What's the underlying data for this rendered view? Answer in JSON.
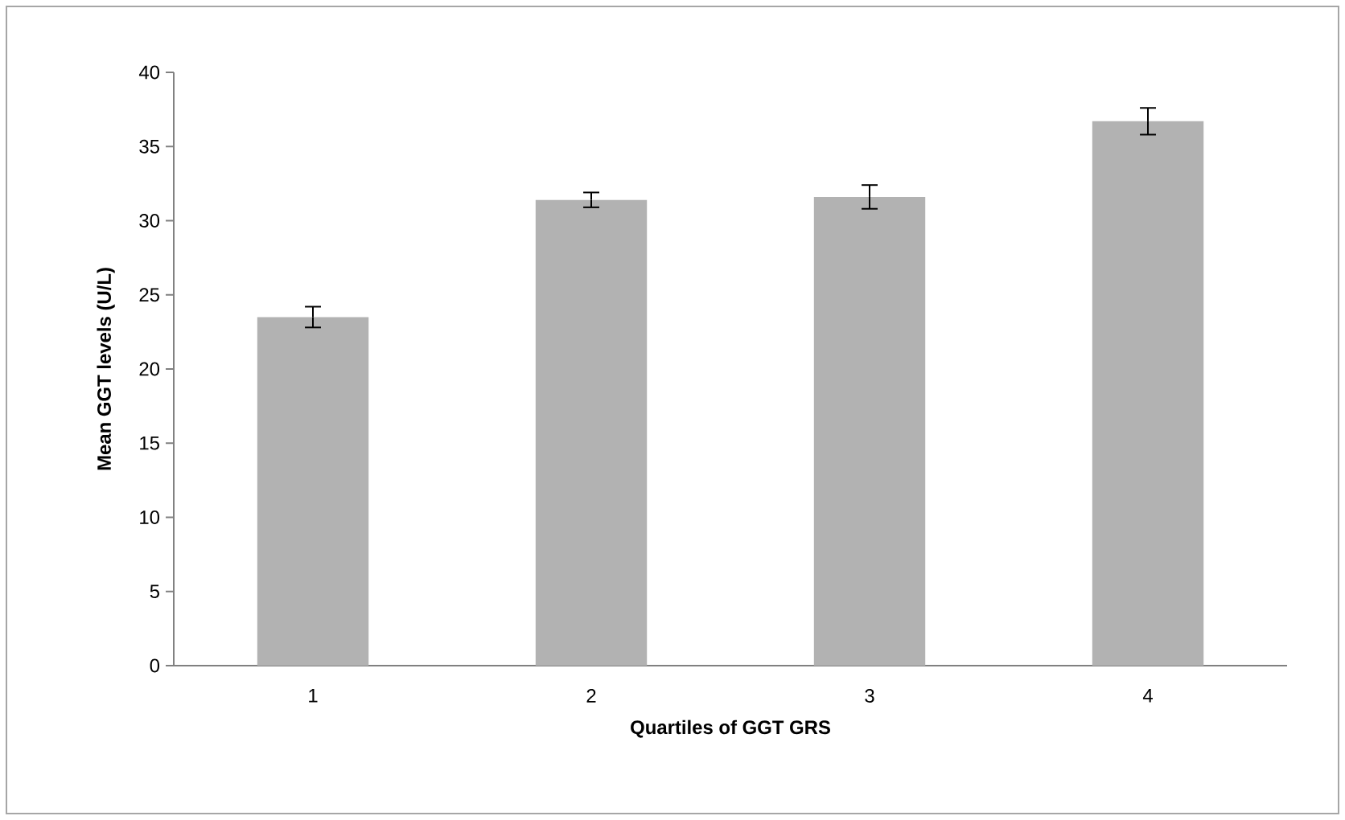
{
  "chart_data": {
    "type": "bar",
    "xlabel": "Quartiles of GGT GRS",
    "ylabel": "Mean GGT levels (U/L)",
    "categories": [
      "1",
      "2",
      "3",
      "4"
    ],
    "values": [
      23.5,
      31.4,
      31.6,
      36.7
    ],
    "errors": [
      0.7,
      0.5,
      0.8,
      0.9
    ],
    "color": "#b2b2b2",
    "ylim": [
      0,
      40
    ],
    "yticks": [
      0,
      5,
      10,
      15,
      20,
      25,
      30,
      35,
      40
    ],
    "grid": false
  }
}
